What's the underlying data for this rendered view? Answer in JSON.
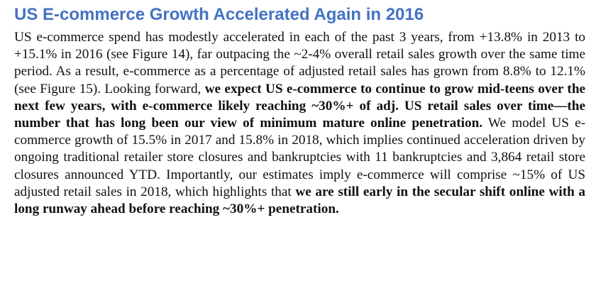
{
  "colors": {
    "heading": "#4472C4",
    "text": "#111111"
  },
  "document": {
    "heading": "US E-commerce Growth Accelerated Again in 2016",
    "paragraph": {
      "seg1": "US e-commerce spend has modestly accelerated in each of the past 3 years, from +13.8% in 2013 to +15.1% in 2016 (see Figure 14), far outpacing the ~2-4% overall retail sales growth over the same time period. As a result, e-commerce as a percentage of adjusted retail sales has grown from 8.8% to 12.1% (see Figure 15). Looking forward, ",
      "seg2_bold": "we expect US e-commerce to continue to grow mid-teens over the next few years, with e-commerce likely reaching ~30%+ of adj. US retail sales over time—the number that has long been our view of minimum mature online penetration.",
      "seg3": " We model US e-commerce growth of 15.5% in 2017 and 15.8% in 2018, which implies continued acceleration driven by ongoing traditional retailer store closures and bankruptcies with 11 bankruptcies and 3,864 retail store closures announced YTD. Importantly, our estimates imply e-commerce will comprise ~15% of US adjusted retail sales in 2018, which highlights that ",
      "seg4_bold": "we are still early in the secular shift online with a long runway ahead before reaching ~30%+ penetration."
    }
  }
}
